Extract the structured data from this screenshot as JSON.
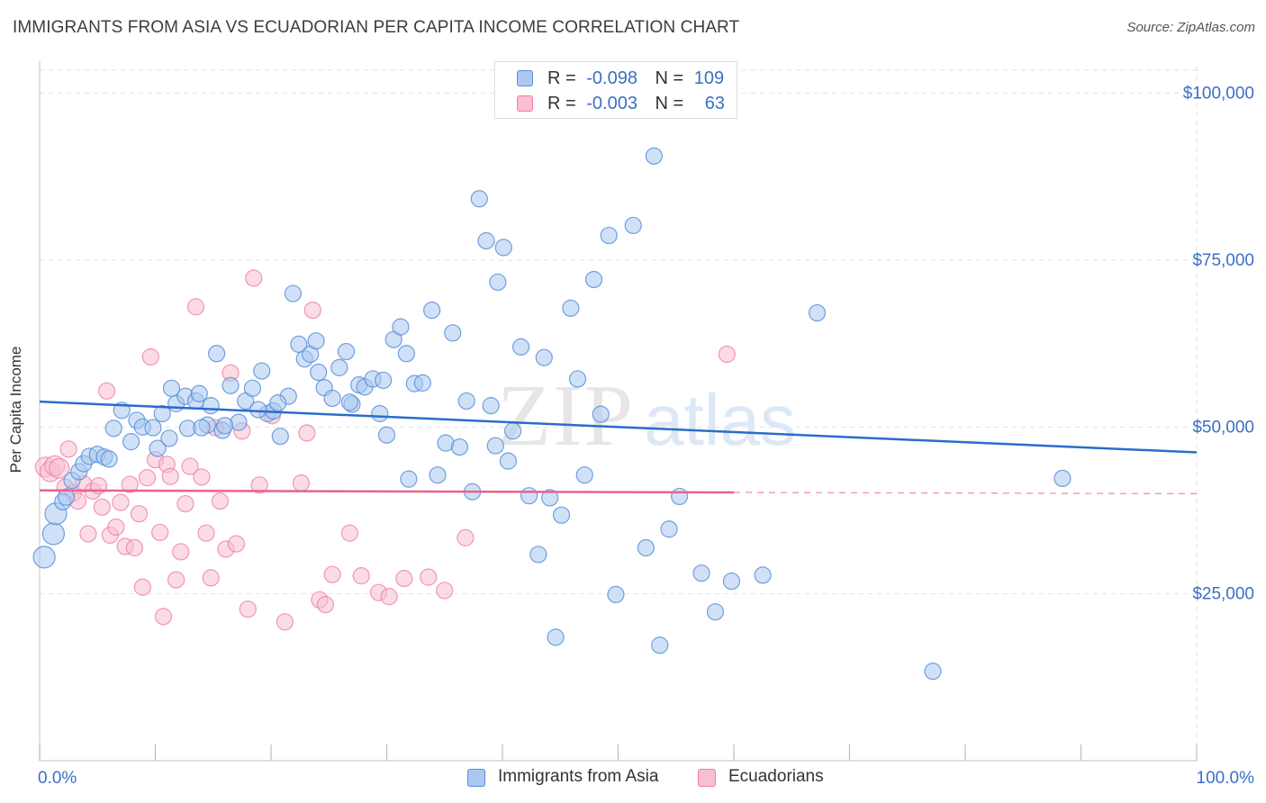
{
  "title": "IMMIGRANTS FROM ASIA VS ECUADORIAN PER CAPITA INCOME CORRELATION CHART",
  "source": "Source: ZipAtlas.com",
  "watermark": {
    "zip": "ZIP",
    "atlas": "atlas"
  },
  "colors": {
    "blue": "#5b8fd9",
    "blue_fill": "#aac8f0",
    "blue_line": "#2a6ccb",
    "pink": "#ef7fa2",
    "pink_fill": "#f7bfd0",
    "pink_line": "#e8628e",
    "axis_text_blue": "#3a6fc4",
    "grid": "#e2e2e2"
  },
  "legend": {
    "rows": [
      {
        "r_label": "R =",
        "r_value": "-0.098",
        "n_label": "N =",
        "n_value": "109"
      },
      {
        "r_label": "R =",
        "r_value": "-0.003",
        "n_label": "N =",
        "n_value": "63"
      }
    ]
  },
  "chart_data": {
    "type": "scatter",
    "title": "IMMIGRANTS FROM ASIA VS ECUADORIAN PER CAPITA INCOME CORRELATION CHART",
    "ylabel": "Per Capita Income",
    "xlabel": "",
    "xlim": [
      0,
      100
    ],
    "ylim": [
      0,
      104000
    ],
    "x_tick_labels": [
      "0.0%",
      "100.0%"
    ],
    "y_ticks": [
      25000,
      50000,
      75000,
      100000
    ],
    "y_tick_labels": [
      "$25,000",
      "$50,000",
      "$75,000",
      "$100,000"
    ],
    "grid": true,
    "legend_position": "top-center",
    "series": [
      {
        "name": "Immigrants from Asia",
        "color": "blue",
        "trend": {
          "x0": 0,
          "y0": 53800,
          "x1": 100,
          "y1": 46200
        },
        "points": [
          [
            0.4,
            30500
          ],
          [
            1.2,
            34000
          ],
          [
            1.4,
            37000
          ],
          [
            2.0,
            38800
          ],
          [
            2.3,
            39500
          ],
          [
            2.8,
            42000
          ],
          [
            3.4,
            43300
          ],
          [
            3.8,
            44500
          ],
          [
            4.3,
            45600
          ],
          [
            5.0,
            45900
          ],
          [
            5.6,
            45500
          ],
          [
            6.4,
            49800
          ],
          [
            7.1,
            52500
          ],
          [
            7.9,
            47800
          ],
          [
            8.4,
            51000
          ],
          [
            8.9,
            50000
          ],
          [
            10.2,
            46800
          ],
          [
            10.6,
            52000
          ],
          [
            11.2,
            48300
          ],
          [
            11.4,
            55800
          ],
          [
            11.8,
            53500
          ],
          [
            12.6,
            54600
          ],
          [
            12.8,
            49800
          ],
          [
            13.5,
            53900
          ],
          [
            13.8,
            55000
          ],
          [
            14.5,
            50300
          ],
          [
            14.8,
            53200
          ],
          [
            15.3,
            61000
          ],
          [
            15.8,
            49500
          ],
          [
            16.5,
            56200
          ],
          [
            17.2,
            50700
          ],
          [
            17.8,
            53900
          ],
          [
            18.4,
            55800
          ],
          [
            19.2,
            58400
          ],
          [
            19.7,
            52000
          ],
          [
            20.2,
            52400
          ],
          [
            20.8,
            48600
          ],
          [
            21.5,
            54600
          ],
          [
            21.9,
            70000
          ],
          [
            22.4,
            62400
          ],
          [
            22.9,
            60200
          ],
          [
            23.4,
            60900
          ],
          [
            23.9,
            62900
          ],
          [
            24.6,
            55900
          ],
          [
            25.3,
            54300
          ],
          [
            25.9,
            58900
          ],
          [
            26.5,
            61300
          ],
          [
            27.0,
            53400
          ],
          [
            27.6,
            56300
          ],
          [
            28.1,
            56000
          ],
          [
            28.8,
            57200
          ],
          [
            29.4,
            52000
          ],
          [
            30.0,
            48800
          ],
          [
            30.6,
            63100
          ],
          [
            31.2,
            65000
          ],
          [
            31.7,
            61000
          ],
          [
            32.4,
            56500
          ],
          [
            33.1,
            56600
          ],
          [
            33.9,
            67500
          ],
          [
            34.4,
            42800
          ],
          [
            35.1,
            47600
          ],
          [
            35.7,
            64100
          ],
          [
            36.3,
            47000
          ],
          [
            36.9,
            53900
          ],
          [
            37.4,
            40300
          ],
          [
            38.0,
            84200
          ],
          [
            38.6,
            77900
          ],
          [
            39.0,
            53200
          ],
          [
            39.6,
            71700
          ],
          [
            40.1,
            76900
          ],
          [
            40.5,
            44900
          ],
          [
            40.9,
            49400
          ],
          [
            41.6,
            62000
          ],
          [
            42.3,
            39700
          ],
          [
            43.1,
            30900
          ],
          [
            43.6,
            60400
          ],
          [
            44.1,
            39400
          ],
          [
            44.6,
            18500
          ],
          [
            45.1,
            36800
          ],
          [
            45.9,
            67800
          ],
          [
            46.5,
            57200
          ],
          [
            47.1,
            42800
          ],
          [
            47.9,
            72100
          ],
          [
            48.5,
            51900
          ],
          [
            49.2,
            78700
          ],
          [
            49.8,
            24900
          ],
          [
            51.3,
            80200
          ],
          [
            52.4,
            31900
          ],
          [
            53.1,
            90600
          ],
          [
            53.6,
            17300
          ],
          [
            54.4,
            34700
          ],
          [
            55.3,
            39600
          ],
          [
            57.2,
            28100
          ],
          [
            58.4,
            22300
          ],
          [
            59.8,
            26900
          ],
          [
            62.5,
            27800
          ],
          [
            67.2,
            67100
          ],
          [
            77.2,
            13400
          ],
          [
            88.4,
            42300
          ],
          [
            6.0,
            45200
          ],
          [
            9.8,
            49900
          ],
          [
            16.0,
            50200
          ],
          [
            18.9,
            52600
          ],
          [
            26.8,
            53700
          ],
          [
            31.9,
            42200
          ],
          [
            39.4,
            47200
          ],
          [
            24.1,
            58200
          ],
          [
            29.7,
            57000
          ],
          [
            14.0,
            49900
          ],
          [
            20.6,
            53600
          ]
        ]
      },
      {
        "name": "Ecuadorians",
        "color": "pink",
        "trend": {
          "x0": 0,
          "y0": 40500,
          "x1": 60,
          "y1": 40200
        },
        "points": [
          [
            0.5,
            44000
          ],
          [
            0.9,
            43300
          ],
          [
            1.3,
            44200
          ],
          [
            1.7,
            43800
          ],
          [
            2.2,
            41000
          ],
          [
            2.5,
            46700
          ],
          [
            2.9,
            40100
          ],
          [
            3.3,
            38900
          ],
          [
            3.8,
            41500
          ],
          [
            4.2,
            34000
          ],
          [
            4.6,
            40400
          ],
          [
            5.1,
            41200
          ],
          [
            5.4,
            38000
          ],
          [
            5.8,
            55400
          ],
          [
            6.1,
            33800
          ],
          [
            6.6,
            35000
          ],
          [
            7.0,
            38700
          ],
          [
            7.4,
            32100
          ],
          [
            7.8,
            41400
          ],
          [
            8.2,
            31900
          ],
          [
            8.6,
            37000
          ],
          [
            8.9,
            26000
          ],
          [
            9.3,
            42400
          ],
          [
            9.6,
            60500
          ],
          [
            10.0,
            45100
          ],
          [
            10.4,
            34200
          ],
          [
            10.7,
            21600
          ],
          [
            11.0,
            44400
          ],
          [
            11.3,
            42600
          ],
          [
            11.8,
            27100
          ],
          [
            12.2,
            31300
          ],
          [
            12.6,
            38500
          ],
          [
            13.0,
            44100
          ],
          [
            13.5,
            68000
          ],
          [
            14.0,
            42500
          ],
          [
            14.4,
            34100
          ],
          [
            14.8,
            27400
          ],
          [
            15.2,
            49900
          ],
          [
            15.6,
            38900
          ],
          [
            16.1,
            31700
          ],
          [
            16.5,
            58100
          ],
          [
            17.0,
            32500
          ],
          [
            17.5,
            49400
          ],
          [
            18.0,
            22700
          ],
          [
            18.5,
            72300
          ],
          [
            19.0,
            41300
          ],
          [
            20.1,
            51700
          ],
          [
            21.2,
            20800
          ],
          [
            22.6,
            41600
          ],
          [
            23.1,
            49100
          ],
          [
            23.6,
            67500
          ],
          [
            24.2,
            24100
          ],
          [
            24.7,
            23400
          ],
          [
            25.3,
            27900
          ],
          [
            26.8,
            34100
          ],
          [
            27.8,
            27700
          ],
          [
            29.3,
            25200
          ],
          [
            30.2,
            24600
          ],
          [
            31.5,
            27300
          ],
          [
            33.6,
            27500
          ],
          [
            35.0,
            25500
          ],
          [
            36.8,
            33400
          ],
          [
            59.4,
            60900
          ]
        ]
      }
    ]
  },
  "bottom_legend": {
    "series1": "Immigrants from Asia",
    "series2": "Ecuadorians"
  }
}
